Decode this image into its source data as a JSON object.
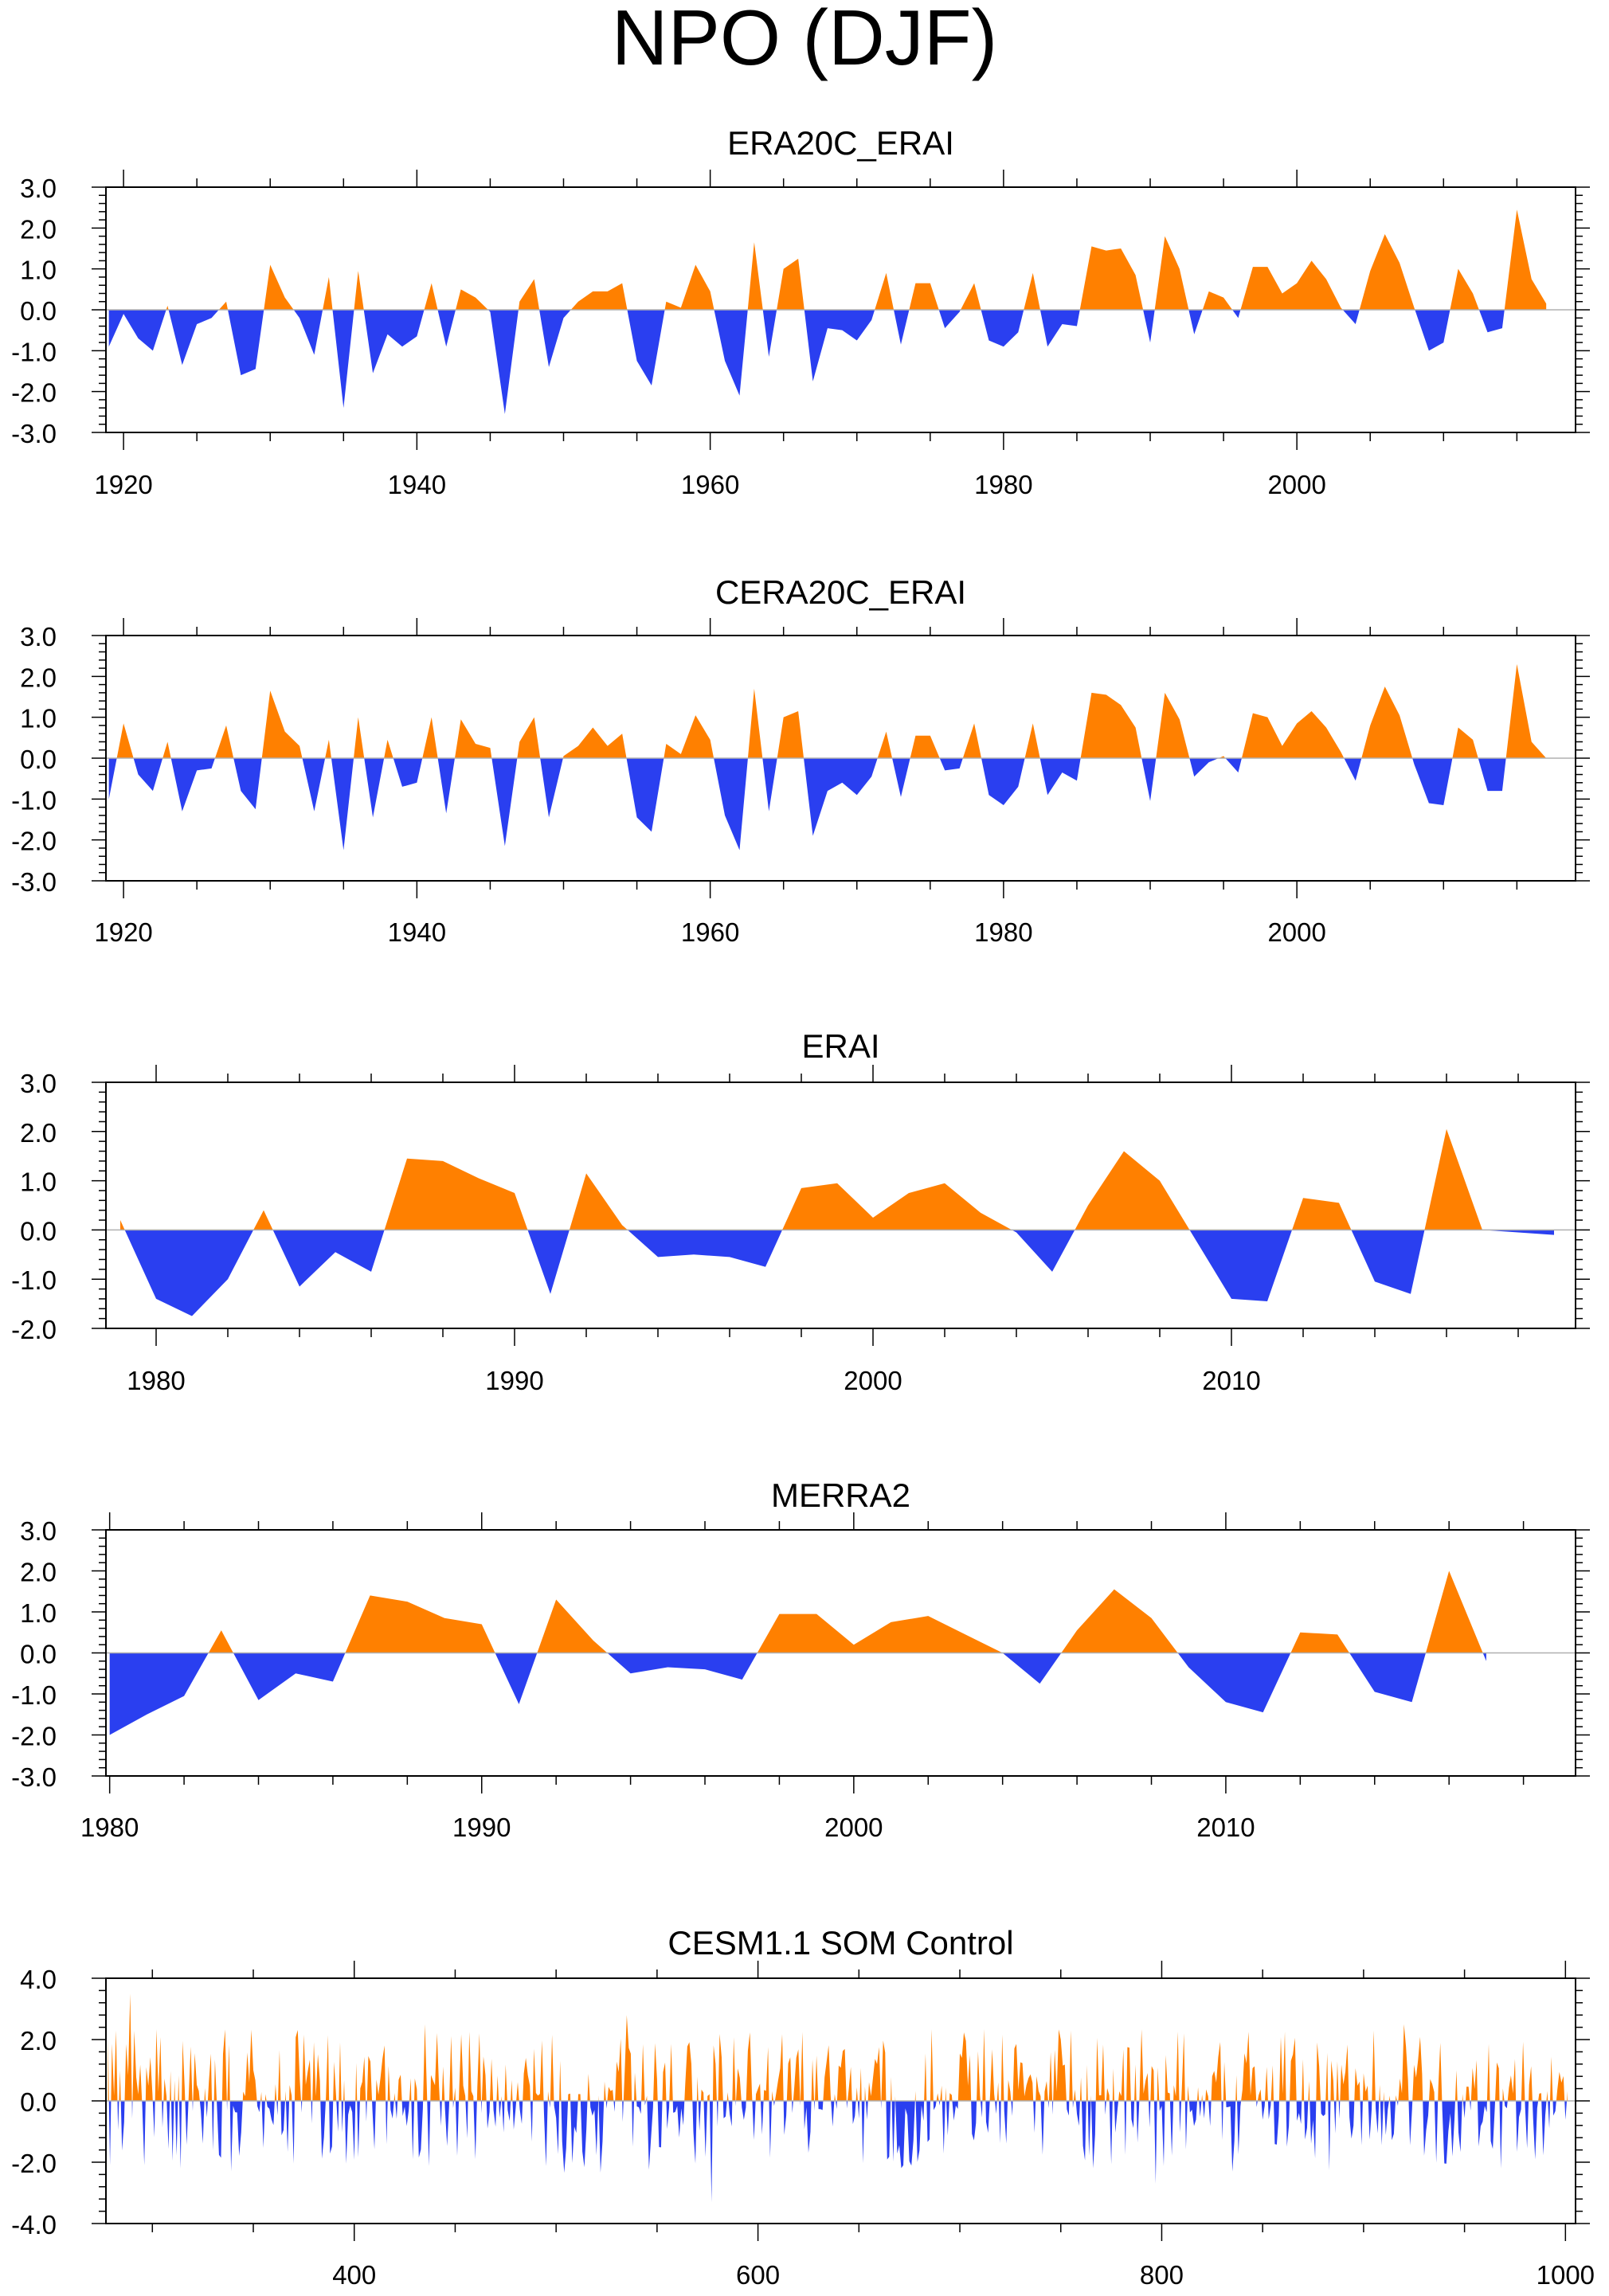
{
  "page_title": "NPO (DJF)",
  "colors": {
    "positive": "#ff8000",
    "negative": "#2a3ff0",
    "axis": "#000000",
    "zero_line": "#b0b0b0"
  },
  "chart_data": [
    {
      "type": "area",
      "title": "ERA20C_ERAI",
      "x_start": 1919,
      "x_step": 1,
      "xlim": [
        1918.8,
        2019
      ],
      "ylim": [
        -3,
        3
      ],
      "yticks": [
        -3,
        -2,
        -1,
        0,
        1,
        2,
        3
      ],
      "ytick_labels": [
        "-3.0",
        "-2.0",
        "-1.0",
        "0.0",
        "1.0",
        "2.0",
        "3.0"
      ],
      "xticks": [
        1920,
        1940,
        1960,
        1980,
        2000
      ],
      "xtick_labels": [
        "1920",
        "1940",
        "1960",
        "1980",
        "2000"
      ],
      "x_minor_step": 5,
      "y_minor_step": 0.2,
      "values": [
        -0.9,
        -0.1,
        -0.7,
        -1.0,
        0.1,
        -1.35,
        -0.35,
        -0.2,
        0.2,
        -1.6,
        -1.45,
        1.1,
        0.3,
        -0.2,
        -1.1,
        0.8,
        -2.4,
        0.95,
        -1.55,
        -0.6,
        -0.9,
        -0.65,
        0.65,
        -0.9,
        0.5,
        0.3,
        -0.05,
        -2.55,
        0.2,
        0.75,
        -1.4,
        -0.2,
        0.2,
        0.45,
        0.45,
        0.65,
        -1.25,
        -1.85,
        0.2,
        0.05,
        1.1,
        0.45,
        -1.25,
        -2.1,
        1.65,
        -1.15,
        1.0,
        1.25,
        -1.75,
        -0.45,
        -0.5,
        -0.75,
        -0.25,
        0.9,
        -0.85,
        0.65,
        0.65,
        -0.45,
        -0.05,
        0.65,
        -0.75,
        -0.9,
        -0.55,
        0.9,
        -0.9,
        -0.35,
        -0.4,
        1.55,
        1.45,
        1.5,
        0.85,
        -0.8,
        1.8,
        1.0,
        -0.6,
        0.45,
        0.3,
        -0.2,
        1.05,
        1.05,
        0.4,
        0.65,
        1.2,
        0.75,
        0.05,
        -0.35,
        0.95,
        1.85,
        1.15,
        0.05,
        -1.0,
        -0.8,
        1.0,
        0.4,
        -0.55,
        -0.45,
        2.45,
        0.75,
        0.15
      ]
    },
    {
      "type": "area",
      "title": "CERA20C_ERAI",
      "x_start": 1919,
      "x_step": 1,
      "xlim": [
        1918.8,
        2019
      ],
      "ylim": [
        -3,
        3
      ],
      "yticks": [
        -3,
        -2,
        -1,
        0,
        1,
        2,
        3
      ],
      "ytick_labels": [
        "-3.0",
        "-2.0",
        "-1.0",
        "0.0",
        "1.0",
        "2.0",
        "3.0"
      ],
      "xticks": [
        1920,
        1940,
        1960,
        1980,
        2000
      ],
      "xtick_labels": [
        "1920",
        "1940",
        "1960",
        "1980",
        "2000"
      ],
      "x_minor_step": 5,
      "y_minor_step": 0.2,
      "values": [
        -1.0,
        0.85,
        -0.4,
        -0.8,
        0.4,
        -1.3,
        -0.3,
        -0.25,
        0.8,
        -0.8,
        -1.25,
        1.65,
        0.65,
        0.3,
        -1.3,
        0.45,
        -2.25,
        1.0,
        -1.45,
        0.45,
        -0.7,
        -0.6,
        1.0,
        -1.35,
        0.95,
        0.35,
        0.25,
        -2.15,
        0.4,
        1.0,
        -1.45,
        0.05,
        0.3,
        0.75,
        0.3,
        0.6,
        -1.45,
        -1.8,
        0.35,
        0.1,
        1.05,
        0.45,
        -1.4,
        -2.25,
        1.7,
        -1.3,
        1.0,
        1.15,
        -1.9,
        -0.8,
        -0.6,
        -0.9,
        -0.45,
        0.65,
        -0.95,
        0.55,
        0.55,
        -0.3,
        -0.25,
        0.85,
        -0.9,
        -1.15,
        -0.7,
        0.85,
        -0.9,
        -0.35,
        -0.55,
        1.6,
        1.55,
        1.3,
        0.75,
        -1.05,
        1.6,
        0.95,
        -0.45,
        -0.1,
        0.05,
        -0.35,
        1.1,
        1.0,
        0.3,
        0.85,
        1.15,
        0.75,
        0.15,
        -0.55,
        0.8,
        1.75,
        1.05,
        -0.15,
        -1.1,
        -1.15,
        0.75,
        0.45,
        -0.8,
        -0.8,
        2.3,
        0.4,
        0.0
      ]
    },
    {
      "type": "area",
      "title": "ERAI",
      "x_start": 1979,
      "x_step": 1,
      "xlim": [
        1978.6,
        2019.6
      ],
      "ylim": [
        -2,
        3
      ],
      "yticks": [
        -2,
        -1,
        0,
        1,
        2,
        3
      ],
      "ytick_labels": [
        "-2.0",
        "-1.0",
        "0.0",
        "1.0",
        "2.0",
        "3.0"
      ],
      "xticks": [
        1980,
        1990,
        2000,
        2010
      ],
      "xtick_labels": [
        "1980",
        "1990",
        "2000",
        "2010"
      ],
      "x_minor_step": 2,
      "y_minor_step": 0.2,
      "values": [
        0.2,
        -1.4,
        -1.75,
        -1.0,
        0.4,
        -1.15,
        -0.45,
        -0.85,
        1.45,
        1.4,
        1.05,
        0.75,
        -1.3,
        1.15,
        0.1,
        -0.55,
        -0.5,
        -0.55,
        -0.75,
        0.85,
        0.95,
        0.25,
        0.75,
        0.95,
        0.35,
        -0.05,
        -0.85,
        0.5,
        1.6,
        1.0,
        -0.2,
        -1.4,
        -1.45,
        0.65,
        0.55,
        -1.05,
        -1.3,
        2.05,
        0.0,
        -0.05,
        -0.1
      ]
    },
    {
      "type": "area",
      "title": "MERRA2",
      "x_start": 1980,
      "x_step": 1,
      "xlim": [
        1979.9,
        2019.4
      ],
      "ylim": [
        -3,
        3
      ],
      "yticks": [
        -3,
        -2,
        -1,
        0,
        1,
        2,
        3
      ],
      "ytick_labels": [
        "-3.0",
        "-2.0",
        "-1.0",
        "0.0",
        "1.0",
        "2.0",
        "3.0"
      ],
      "xticks": [
        1980,
        1990,
        2000,
        2010
      ],
      "xtick_labels": [
        "1980",
        "1990",
        "2000",
        "2010"
      ],
      "x_minor_step": 2,
      "y_minor_step": 0.2,
      "values": [
        -2.0,
        -1.5,
        -1.05,
        0.55,
        -1.15,
        -0.5,
        -0.7,
        1.4,
        1.25,
        0.85,
        0.7,
        -1.25,
        1.3,
        0.3,
        -0.5,
        -0.35,
        -0.4,
        -0.65,
        0.95,
        0.95,
        0.2,
        0.75,
        0.9,
        0.45,
        0.0,
        -0.75,
        0.55,
        1.55,
        0.85,
        -0.35,
        -1.2,
        -1.45,
        0.5,
        0.45,
        -0.95,
        -1.2,
        2.0,
        -0.2
      ]
    },
    {
      "type": "area",
      "title": "CESM1.1 SOM Control",
      "x_start": 278,
      "x_step": 1,
      "x_end": 1001,
      "xlim": [
        277,
        1005
      ],
      "ylim": [
        -4,
        4
      ],
      "yticks": [
        -4,
        -2,
        0,
        2,
        4
      ],
      "ytick_labels": [
        "-4.0",
        "-2.0",
        "0.0",
        "2.0",
        "4.0"
      ],
      "xticks": [
        400,
        600,
        800,
        1000
      ],
      "xtick_labels": [
        "400",
        "600",
        "800",
        "1000"
      ],
      "x_minor_step": 50,
      "y_minor_step": 0.4,
      "amplitude_note": "approximately 724 annual values, typical magnitude 1-2.5, extremes near +3.5 (year ~289) and -3.3 (year ~577)",
      "series_seed": 7,
      "extremes": [
        [
          289,
          3.5
        ],
        [
          577,
          -3.3
        ],
        [
          535,
          2.8
        ],
        [
          797,
          -2.7
        ],
        [
          968,
          -2.2
        ],
        [
          920,
          2.5
        ],
        [
          435,
          2.5
        ]
      ]
    }
  ]
}
